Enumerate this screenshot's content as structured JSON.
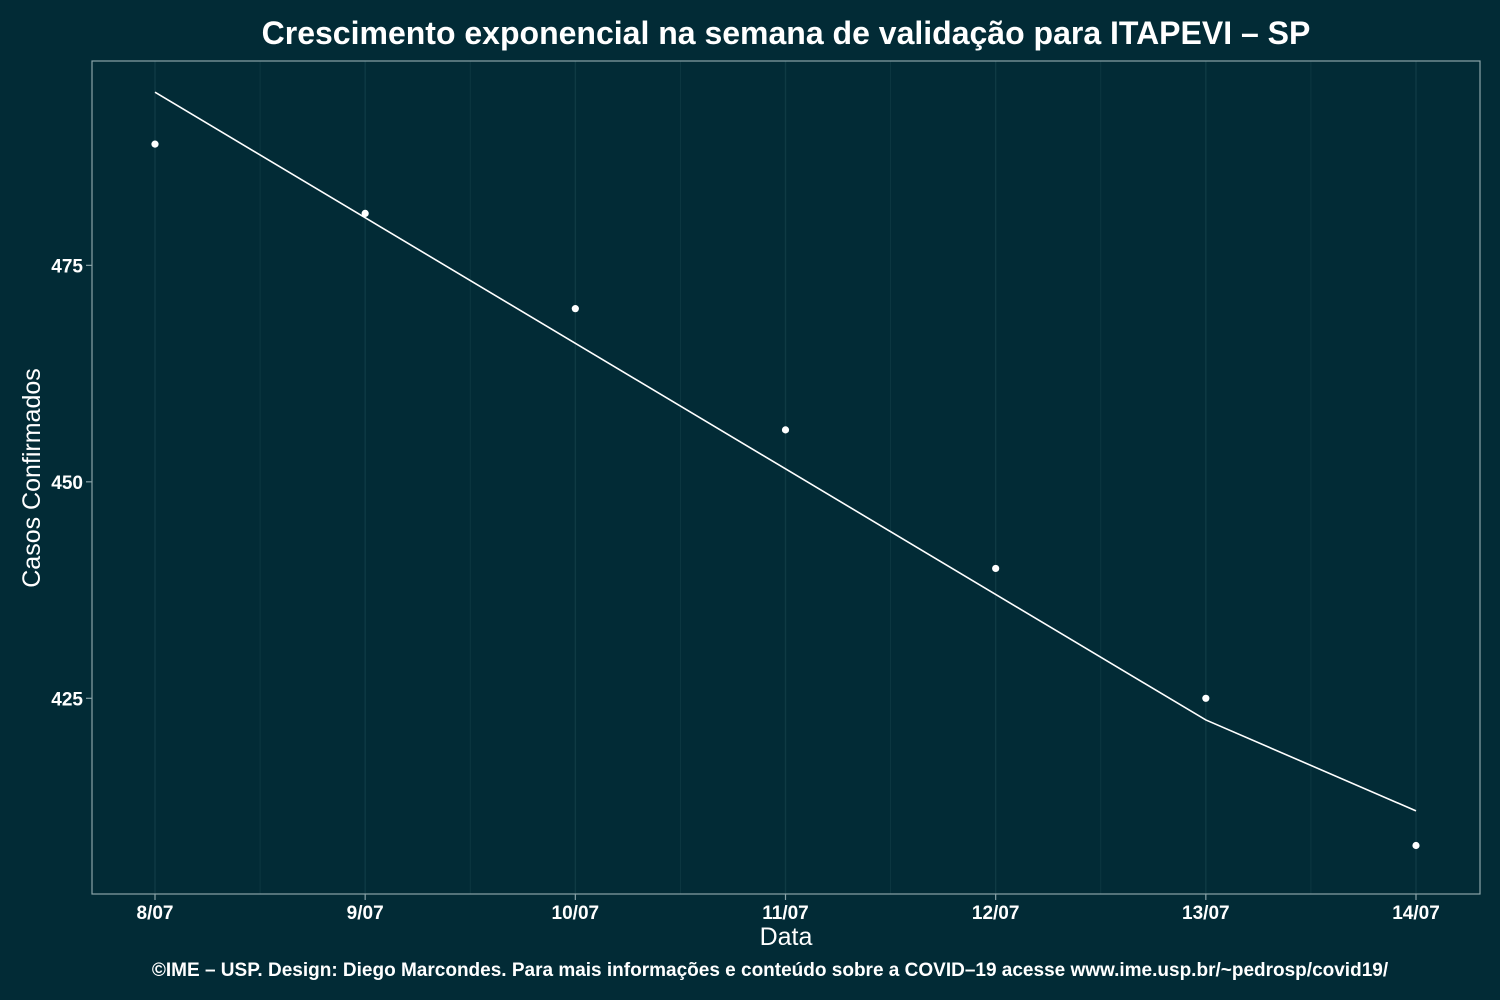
{
  "colors": {
    "background": "#022b36",
    "panel_border": "#8aa3a8",
    "grid": "#0f3a44",
    "mark": "#ffffff"
  },
  "chart_data": {
    "type": "scatter",
    "title": "Crescimento exponencial na semana de validação para ITAPEVI – SP",
    "xlabel": "Data",
    "ylabel": "Casos Confirmados",
    "caption": "©IME – USP. Design: Diego Marcondes. Para mais informações e conteúdo sobre a COVID–19 acesse www.ime.usp.br/~pedrosp/covid19/",
    "categories": [
      "8/07",
      "9/07",
      "10/07",
      "11/07",
      "12/07",
      "13/07",
      "14/07"
    ],
    "series": [
      {
        "type": "scatter",
        "values": [
          489,
          481,
          470,
          456,
          440,
          425,
          408
        ]
      },
      {
        "type": "line",
        "values": [
          495,
          480.5,
          466,
          451.5,
          437,
          422.5,
          412
        ]
      }
    ],
    "yticks": [
      425,
      450,
      475
    ],
    "ylim": [
      402.4,
      498.6
    ],
    "grid": true,
    "legend": "none"
  }
}
